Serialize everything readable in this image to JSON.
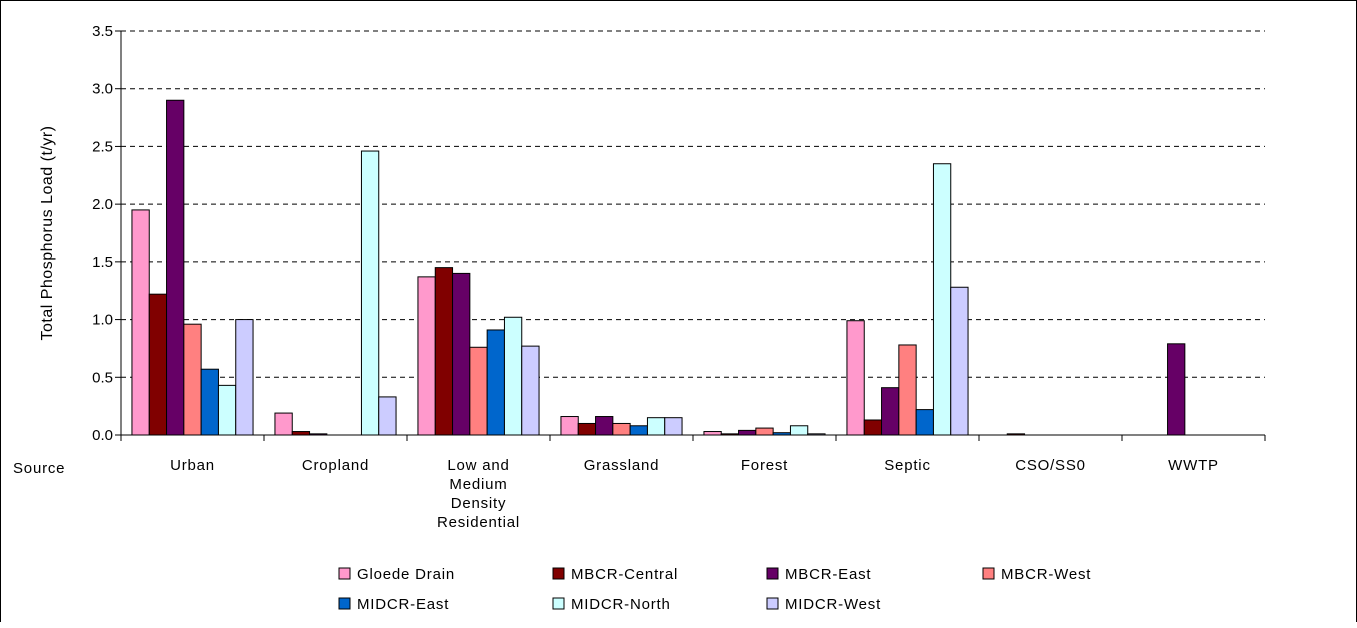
{
  "chart_data": {
    "type": "bar",
    "title": "",
    "ylabel": "Total Phosphorus Load  (t/yr)",
    "xlabel": "Source",
    "ylim": [
      0,
      3.5
    ],
    "yticks": [
      "0.0",
      "0.5",
      "1.0",
      "1.5",
      "2.0",
      "2.5",
      "3.0",
      "3.5"
    ],
    "grid": "horizontal dashed",
    "legend_position": "bottom",
    "categories": [
      [
        "Urban"
      ],
      [
        "Cropland"
      ],
      [
        "Low and",
        "Medium",
        "Density",
        "Residential"
      ],
      [
        "Grassland"
      ],
      [
        "Forest"
      ],
      [
        "Septic"
      ],
      [
        "CSO/SS0"
      ],
      [
        "WWTP"
      ]
    ],
    "series": [
      {
        "name": "Gloede Drain",
        "color": "#FF99CC",
        "values": [
          1.95,
          0.19,
          1.37,
          0.16,
          0.03,
          0.99,
          0.0,
          0.0
        ]
      },
      {
        "name": "MBCR-Central",
        "color": "#800000",
        "values": [
          1.22,
          0.03,
          1.45,
          0.1,
          0.01,
          0.13,
          0.01,
          0.0
        ]
      },
      {
        "name": "MBCR-East",
        "color": "#660066",
        "values": [
          2.9,
          0.01,
          1.4,
          0.16,
          0.04,
          0.41,
          0.0,
          0.79
        ]
      },
      {
        "name": "MBCR-West",
        "color": "#FF8080",
        "values": [
          0.96,
          0.0,
          0.76,
          0.1,
          0.06,
          0.78,
          0.0,
          0.0
        ]
      },
      {
        "name": "MIDCR-East",
        "color": "#0066CC",
        "values": [
          0.57,
          0.0,
          0.91,
          0.08,
          0.02,
          0.22,
          0.0,
          0.0
        ]
      },
      {
        "name": "MIDCR-North",
        "color": "#CCFFFF",
        "values": [
          0.43,
          2.46,
          1.02,
          0.15,
          0.08,
          2.35,
          0.0,
          0.0
        ]
      },
      {
        "name": "MIDCR-West",
        "color": "#CCCCFF",
        "values": [
          1.0,
          0.33,
          0.77,
          0.15,
          0.01,
          1.28,
          0.0,
          0.0
        ]
      }
    ]
  }
}
